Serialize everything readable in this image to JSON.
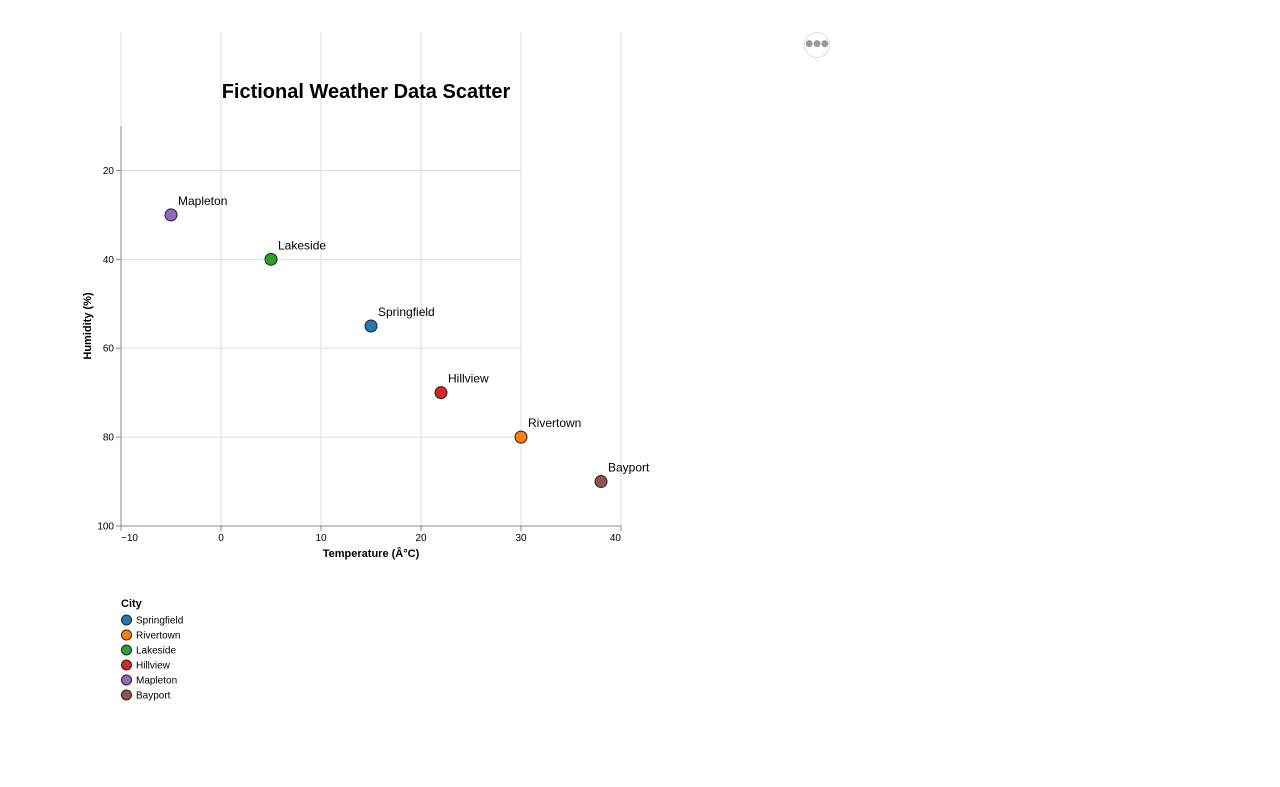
{
  "actions_menu": {
    "icon": "more-horizontal-icon"
  },
  "chart_data": {
    "type": "scatter",
    "title": "Fictional Weather Data Scatter",
    "xlabel": "Temperature (Â°C)",
    "ylabel": "Humidity (%)",
    "xlim": [
      -10,
      40
    ],
    "ylim": [
      10,
      100
    ],
    "y_reversed": true,
    "x_ticks": [
      -10,
      0,
      10,
      20,
      30,
      40
    ],
    "x_tick_labels": [
      "−10",
      "0",
      "10",
      "20",
      "30",
      "40"
    ],
    "y_ticks": [
      20,
      40,
      60,
      80,
      100
    ],
    "y_tick_labels": [
      "20",
      "40",
      "60",
      "80",
      "100"
    ],
    "grid": true,
    "legend": {
      "title": "City",
      "placement": "bottom-left"
    },
    "points": [
      {
        "city": "Springfield",
        "x": 15,
        "y": 55,
        "color": "#1f77b4"
      },
      {
        "city": "Rivertown",
        "x": 30,
        "y": 80,
        "color": "#ff7f0e"
      },
      {
        "city": "Lakeside",
        "x": 5,
        "y": 40,
        "color": "#2ca02c"
      },
      {
        "city": "Hillview",
        "x": 22,
        "y": 70,
        "color": "#d62728"
      },
      {
        "city": "Mapleton",
        "x": -5,
        "y": 30,
        "color": "#9467bd"
      },
      {
        "city": "Bayport",
        "x": 38,
        "y": 90,
        "color": "#8c564b"
      }
    ]
  }
}
